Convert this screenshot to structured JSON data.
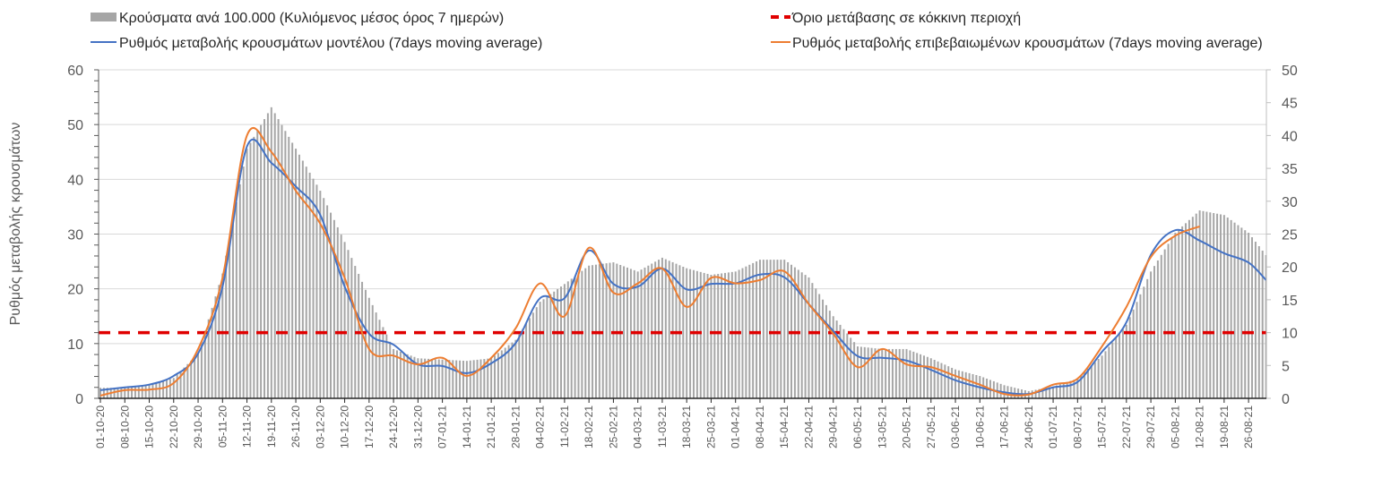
{
  "chart_data": {
    "type": "bar+line",
    "title": "",
    "ylabel": "Ρυθμός μεταβολής κρουσμάτων",
    "ylabel_right": "",
    "ylim_left": [
      0,
      60
    ],
    "ylim_right": [
      0,
      50
    ],
    "yticks_left": [
      "0",
      "10",
      "20",
      "30",
      "40",
      "50",
      "60"
    ],
    "yticks_right": [
      "0",
      "5",
      "10",
      "15",
      "20",
      "25",
      "30",
      "35",
      "40",
      "45",
      "50"
    ],
    "grid": true,
    "legend_position": "top",
    "x_tick_labels": [
      "01-10-20",
      "08-10-20",
      "15-10-20",
      "22-10-20",
      "29-10-20",
      "05-11-20",
      "12-11-20",
      "19-11-20",
      "26-11-20",
      "03-12-20",
      "10-12-20",
      "17-12-20",
      "24-12-20",
      "31-12-20",
      "07-01-21",
      "14-01-21",
      "21-01-21",
      "28-01-21",
      "04-02-21",
      "11-02-21",
      "18-02-21",
      "25-02-21",
      "04-03-21",
      "11-03-21",
      "18-03-21",
      "25-03-21",
      "01-04-21",
      "08-04-21",
      "15-04-21",
      "22-04-21",
      "29-04-21",
      "06-05-21",
      "13-05-21",
      "20-05-21",
      "27-05-21",
      "03-06-21",
      "10-06-21",
      "17-06-21",
      "24-06-21",
      "01-07-21",
      "08-07-21",
      "15-07-21",
      "22-07-21",
      "29-07-21",
      "05-08-21",
      "12-08-21",
      "19-08-21",
      "26-08-21"
    ],
    "x_day_offsets": [
      0,
      7,
      14,
      21,
      28,
      35,
      42,
      49,
      56,
      63,
      70,
      77,
      84,
      91,
      98,
      105,
      112,
      119,
      126,
      133,
      140,
      147,
      154,
      161,
      168,
      175,
      182,
      189,
      196,
      203,
      210,
      217,
      224,
      231,
      238,
      245,
      252,
      259,
      266,
      273,
      280,
      287,
      294,
      301,
      308,
      315,
      322,
      329,
      334
    ],
    "series": [
      {
        "name": "Κρούσματα ανά 100.000 (Κυλιόμενος μέσος όρος 7 ημερών)",
        "kind": "bar",
        "axis": "right",
        "color": "#a6a6a6",
        "values": [
          1.6,
          1.6,
          2.0,
          3.1,
          6.8,
          19.0,
          38.0,
          44.3,
          38.0,
          31.6,
          23.8,
          15.3,
          7.5,
          6.1,
          5.9,
          5.7,
          6.1,
          8.9,
          14.7,
          17.4,
          20.2,
          20.7,
          19.3,
          21.4,
          19.8,
          18.8,
          19.3,
          21.1,
          21.1,
          18.4,
          12.5,
          7.9,
          7.5,
          7.5,
          6.1,
          4.4,
          3.4,
          2.0,
          1.1,
          1.8,
          3.0,
          6.5,
          11.2,
          19.3,
          25.2,
          28.6,
          27.9,
          25.2,
          21.8
        ]
      },
      {
        "name": "Ρυθμός μεταβολής κρουσμάτων μοντέλου (7days moving average)",
        "kind": "line",
        "axis": "left",
        "color": "#4472c4",
        "values": [
          1.5,
          2.0,
          2.5,
          4.1,
          8.2,
          20.4,
          46.0,
          43.0,
          38.7,
          33.5,
          20.4,
          11.8,
          9.8,
          6.2,
          5.9,
          4.6,
          6.4,
          10.1,
          18.3,
          18.3,
          27.0,
          20.9,
          20.4,
          23.7,
          19.9,
          20.9,
          21.0,
          22.6,
          22.1,
          17.2,
          12.3,
          7.7,
          7.4,
          6.9,
          5.2,
          3.3,
          2.0,
          1.1,
          0.8,
          2.0,
          3.0,
          8.5,
          13.9,
          26.2,
          30.7,
          28.8,
          26.5,
          24.8,
          21.6
        ]
      },
      {
        "name": "Ρυθμός μεταβολής επιβεβαιωμένων κρουσμάτων (7days moving average)",
        "kind": "line",
        "axis": "left",
        "color": "#ed7d31",
        "values": [
          0.5,
          1.5,
          1.6,
          2.8,
          9.0,
          22.0,
          48.0,
          45.0,
          37.9,
          31.9,
          22.0,
          9.0,
          7.8,
          6.2,
          7.4,
          4.1,
          7.4,
          12.8,
          21.0,
          15.0,
          27.5,
          19.3,
          21.0,
          23.7,
          16.7,
          22.0,
          21.0,
          21.6,
          23.2,
          17.2,
          11.8,
          5.7,
          9.0,
          6.2,
          5.7,
          4.1,
          2.5,
          0.8,
          0.7,
          2.5,
          3.6,
          9.5,
          16.7,
          25.8,
          29.7,
          31.4
        ]
      },
      {
        "name": "Όριο μετάβασης σε κόκκινη περιοχή",
        "kind": "threshold",
        "axis": "left",
        "color": "#e00000",
        "value": 12
      }
    ]
  },
  "legend": {
    "bars": "Κρούσματα ανά 100.000 (Κυλιόμενος μέσος όρος 7 ημερών)",
    "model": "Ρυθμός μεταβολής κρουσμάτων μοντέλου (7days moving average)",
    "threshold": "Όριο μετάβασης σε κόκκινη περιοχή",
    "confirmed": "Ρυθμός μεταβολής επιβεβαιωμένων κρουσμάτων (7days moving average)"
  }
}
